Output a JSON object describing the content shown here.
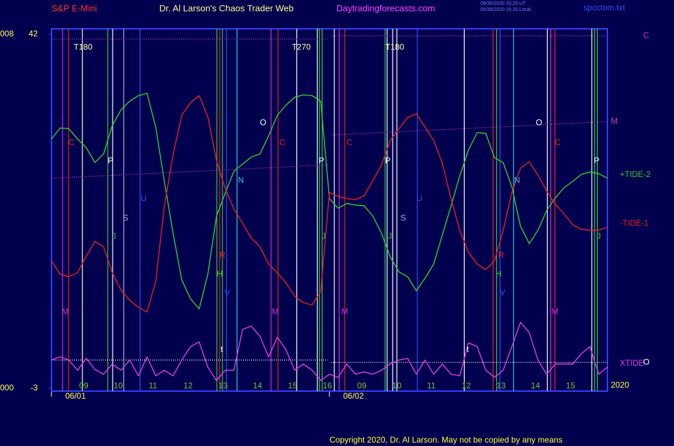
{
  "chart_data": {
    "type": "line",
    "instrument": "S&P E-Mini",
    "title": "Dr. Al Larson's Chaos Trader Web",
    "website": "Daytradingforecasts.com",
    "timestamps": [
      "05/30/2020 20:20 UT",
      "05/30/2020 15:20 Local"
    ],
    "file": "spcctom.txt",
    "year": "2020",
    "copyright": "Copyright 2020, Dr. Al Larson. May not be copied by any means",
    "left_labels": [
      "008",
      "000"
    ],
    "xlim": [
      0,
      16
    ],
    "ylim": [
      -3,
      42
    ],
    "yticks": [
      42,
      -3
    ],
    "xticks": [
      {
        "value": 0.93,
        "label": "09"
      },
      {
        "value": 1.92,
        "label": "10"
      },
      {
        "value": 2.92,
        "label": "11"
      },
      {
        "value": 3.93,
        "label": "12"
      },
      {
        "value": 4.94,
        "label": "13"
      },
      {
        "value": 5.93,
        "label": "14"
      },
      {
        "value": 6.94,
        "label": "15"
      },
      {
        "value": 7.94,
        "label": "16"
      },
      {
        "value": 8.93,
        "label": "09"
      },
      {
        "value": 9.94,
        "label": "10"
      },
      {
        "value": 10.93,
        "label": "11"
      },
      {
        "value": 11.94,
        "label": "12"
      },
      {
        "value": 12.94,
        "label": "13"
      },
      {
        "value": 13.93,
        "label": "14"
      },
      {
        "value": 14.94,
        "label": "15"
      }
    ],
    "dates": [
      {
        "value": 0,
        "label": "06/01"
      },
      {
        "value": 8.0,
        "label": "06/02"
      }
    ],
    "x": [
      0,
      0.25,
      0.5,
      0.75,
      1,
      1.25,
      1.5,
      1.75,
      2,
      2.25,
      2.5,
      2.75,
      3,
      3.25,
      3.5,
      3.75,
      4,
      4.25,
      4.5,
      4.75,
      5,
      5.25,
      5.5,
      5.75,
      6,
      6.25,
      6.5,
      6.75,
      7,
      7.25,
      7.5,
      7.75,
      8,
      8.25,
      8.5,
      8.75,
      9,
      9.25,
      9.5,
      9.75,
      10,
      10.25,
      10.5,
      10.75,
      11,
      11.25,
      11.5,
      11.75,
      12,
      12.25,
      12.5,
      12.75,
      13,
      13.25,
      13.5,
      13.75,
      14,
      14.25,
      14.5,
      14.75,
      15,
      15.25,
      15.5,
      15.75,
      16
    ],
    "series": [
      {
        "name": "+TIDE-2",
        "color": "#30d030",
        "values": [
          28.7,
          30.1,
          30.0,
          28.7,
          27.6,
          25.7,
          26.8,
          30.4,
          32.4,
          33.5,
          34.2,
          34.5,
          30.2,
          23.3,
          16.7,
          10.8,
          8.4,
          7.1,
          11.5,
          18.9,
          21.8,
          24.6,
          25.5,
          26.4,
          26.8,
          29.1,
          31.7,
          33.0,
          34.0,
          34.3,
          34.2,
          33.5,
          21.1,
          19.9,
          20.5,
          20.3,
          20.2,
          18.9,
          16.7,
          13.7,
          11.8,
          11.2,
          9.4,
          11.0,
          12.8,
          16.5,
          20.2,
          24.0,
          27.3,
          29.5,
          29.4,
          26.3,
          25.7,
          22.6,
          17.6,
          15.4,
          17.1,
          19.6,
          21.2,
          22.5,
          23.3,
          24.2,
          24.5,
          24.3,
          23.7
        ]
      },
      {
        "name": "-TIDE-1",
        "color": "#e82020",
        "values": [
          13.2,
          11.5,
          11.2,
          11.7,
          13.8,
          15.7,
          15.0,
          11.7,
          9.5,
          8.2,
          7.3,
          6.7,
          10.6,
          20.2,
          26.7,
          31.7,
          33.3,
          34.2,
          31.5,
          25.9,
          22.4,
          19.8,
          18.0,
          16.1,
          15.0,
          12.8,
          11.7,
          10.4,
          8.7,
          7.9,
          7.6,
          9.3,
          21.9,
          21.4,
          21.1,
          21.0,
          21.5,
          23.4,
          25.4,
          28.5,
          30.0,
          31.4,
          31.9,
          30.2,
          28.5,
          25.6,
          21.1,
          17.1,
          14.3,
          12.8,
          12.1,
          13.2,
          17.1,
          21.9,
          25.0,
          25.8,
          24.1,
          22.1,
          20.4,
          19.2,
          17.8,
          17.2,
          17.1,
          17.1,
          17.5
        ]
      },
      {
        "name": "XTIDE",
        "color": "#e040e0",
        "values": [
          0.6,
          1.0,
          0.6,
          -0.7,
          0.8,
          -0.6,
          -1.2,
          0.1,
          -0.7,
          0.6,
          -1.4,
          1.0,
          -1.4,
          -0.7,
          -1.4,
          0.6,
          2.3,
          2.9,
          -0.3,
          -2.0,
          -0.7,
          -0.7,
          4.5,
          4.9,
          3.6,
          1.0,
          3.5,
          1.9,
          -0.7,
          0.1,
          -0.7,
          -2.0,
          -1.2,
          -1.6,
          0.1,
          -1.2,
          -0.9,
          -1.2,
          -0.7,
          0.1,
          0.6,
          0.8,
          -1.2,
          0.6,
          -1.2,
          0.1,
          -1.2,
          -1.4,
          2.8,
          2.3,
          -0.7,
          -1.6,
          -0.7,
          2.3,
          5.4,
          4.1,
          0.6,
          -1.2,
          0.1,
          0.1,
          0.1,
          1.4,
          2.3,
          -1.2,
          -0.3
        ]
      }
    ],
    "reference_lines": [
      {
        "name": "C",
        "color": "#d030d0",
        "x": [
          0,
          7.95,
          8.0,
          8.05,
          16
        ],
        "values": [
          41.4,
          41.4,
          null,
          41.8,
          41.8
        ]
      },
      {
        "name": "M",
        "color": "#d030d0",
        "x": [
          0,
          7.95,
          8.0,
          8.05,
          16
        ],
        "values": [
          23.7,
          25.4,
          null,
          29.2,
          30.9
        ]
      },
      {
        "name": "O",
        "color": "#ffffff",
        "x": [
          0,
          7.95,
          8.0,
          8.05,
          16
        ],
        "values": [
          0.6,
          0.6,
          null,
          0.3,
          0.3
        ]
      }
    ],
    "markers": [
      {
        "x": 0.32,
        "color": "#d030d0"
      },
      {
        "x": 0.49,
        "color": "#e82020"
      },
      {
        "x": 0.89,
        "color": "#ffffc0"
      },
      {
        "x": 1.62,
        "color": "#30d030"
      },
      {
        "x": 1.76,
        "color": "#ffffff"
      },
      {
        "x": 2.08,
        "color": "#b0b0d0"
      },
      {
        "x": 2.55,
        "color": "#3050ff"
      },
      {
        "x": 4.76,
        "color": "#30d030"
      },
      {
        "x": 4.84,
        "color": "#e82020"
      },
      {
        "x": 4.92,
        "color": "#30d030"
      },
      {
        "x": 5.04,
        "color": "#3050ff"
      },
      {
        "x": 5.34,
        "color": "#30c8e8"
      },
      {
        "x": 6.32,
        "color": "#d030d0"
      },
      {
        "x": 6.52,
        "color": "#e82020"
      },
      {
        "x": 7.06,
        "color": "#ffffff"
      },
      {
        "x": 7.65,
        "color": "#ffffff"
      },
      {
        "x": 7.71,
        "color": "#30d030"
      },
      {
        "x": 7.79,
        "color": "#30d030"
      },
      {
        "x": 8.14,
        "color": "#ffffff"
      },
      {
        "x": 8.28,
        "color": "#d030d0"
      },
      {
        "x": 8.44,
        "color": "#e82020"
      },
      {
        "x": 9.6,
        "color": "#30d030"
      },
      {
        "x": 9.66,
        "color": "#ffffff"
      },
      {
        "x": 9.82,
        "color": "#ffffff"
      },
      {
        "x": 9.94,
        "color": "#ffffff"
      },
      {
        "x": 10.53,
        "color": "#3050ff"
      },
      {
        "x": 11.88,
        "color": "#ffffff"
      },
      {
        "x": 12.71,
        "color": "#e82020"
      },
      {
        "x": 12.81,
        "color": "#30d030"
      },
      {
        "x": 12.91,
        "color": "#3050ff"
      },
      {
        "x": 13.3,
        "color": "#30c8e8"
      },
      {
        "x": 14.27,
        "color": "#ffffff"
      },
      {
        "x": 14.37,
        "color": "#d030d0"
      },
      {
        "x": 14.49,
        "color": "#e82020"
      },
      {
        "x": 15.55,
        "color": "#ffffff"
      },
      {
        "x": 15.63,
        "color": "#30d030"
      },
      {
        "x": 15.71,
        "color": "#30d030"
      }
    ],
    "annotations": [
      {
        "text": "T180",
        "x": 0.91,
        "y": 40.3,
        "color": "#ffffc0"
      },
      {
        "text": "T270",
        "x": 7.19,
        "y": 40.3,
        "color": "#ffffc0"
      },
      {
        "text": "T180",
        "x": 9.88,
        "y": 40.3,
        "color": "#ffffc0"
      },
      {
        "text": "C",
        "x": 0.57,
        "y": 28.2,
        "color": "#e82020"
      },
      {
        "text": "P",
        "x": 1.7,
        "y": 25.9,
        "color": "#ffffff"
      },
      {
        "text": "S",
        "x": 2.13,
        "y": 18.6,
        "color": "#b0b0d0"
      },
      {
        "text": "U",
        "x": 2.65,
        "y": 21.1,
        "color": "#3050ff"
      },
      {
        "text": "J",
        "x": 1.8,
        "y": 16.3,
        "color": "#30d030"
      },
      {
        "text": "M",
        "x": 0.4,
        "y": 6.7,
        "color": "#d030d0"
      },
      {
        "text": "O",
        "x": 6.09,
        "y": 30.7,
        "color": "#ffffff"
      },
      {
        "text": "N",
        "x": 5.45,
        "y": 23.4,
        "color": "#30c8e8"
      },
      {
        "text": "R",
        "x": 4.92,
        "y": 13.9,
        "color": "#e82020"
      },
      {
        "text": "H",
        "x": 4.84,
        "y": 11.5,
        "color": "#30d030"
      },
      {
        "text": "V",
        "x": 5.06,
        "y": 9.1,
        "color": "#3050ff"
      },
      {
        "text": "t",
        "x": 4.9,
        "y": 1.9,
        "color": "#ffffff"
      },
      {
        "text": "C",
        "x": 6.64,
        "y": 28.2,
        "color": "#e82020"
      },
      {
        "text": "M",
        "x": 6.44,
        "y": 6.7,
        "color": "#d030d0"
      },
      {
        "text": "P",
        "x": 7.77,
        "y": 25.9,
        "color": "#ffffff"
      },
      {
        "text": "J",
        "x": 7.83,
        "y": 16.3,
        "color": "#30d030"
      },
      {
        "text": "C",
        "x": 8.58,
        "y": 28.2,
        "color": "#e82020"
      },
      {
        "text": "M",
        "x": 8.44,
        "y": 6.7,
        "color": "#d030d0"
      },
      {
        "text": "P",
        "x": 9.68,
        "y": 25.9,
        "color": "#ffffff"
      },
      {
        "text": "S",
        "x": 10.12,
        "y": 18.6,
        "color": "#b0b0d0"
      },
      {
        "text": "U",
        "x": 10.59,
        "y": 21.1,
        "color": "#3050ff"
      },
      {
        "text": "J",
        "x": 9.74,
        "y": 16.3,
        "color": "#30d030"
      },
      {
        "text": "O",
        "x": 14.03,
        "y": 30.7,
        "color": "#ffffff"
      },
      {
        "text": "C",
        "x": 14.57,
        "y": 28.2,
        "color": "#e82020"
      },
      {
        "text": "N",
        "x": 13.4,
        "y": 23.4,
        "color": "#30c8e8"
      },
      {
        "text": "R",
        "x": 12.94,
        "y": 13.9,
        "color": "#e82020"
      },
      {
        "text": "H",
        "x": 12.87,
        "y": 11.5,
        "color": "#30d030"
      },
      {
        "text": "V",
        "x": 12.98,
        "y": 9.1,
        "color": "#3050ff"
      },
      {
        "text": "M",
        "x": 14.49,
        "y": 6.7,
        "color": "#d030d0"
      },
      {
        "text": "P",
        "x": 15.69,
        "y": 25.9,
        "color": "#ffffff"
      },
      {
        "text": "J",
        "x": 15.75,
        "y": 16.3,
        "color": "#30d030"
      },
      {
        "text": "t",
        "x": 11.98,
        "y": 1.9,
        "color": "#ffffff"
      }
    ]
  }
}
